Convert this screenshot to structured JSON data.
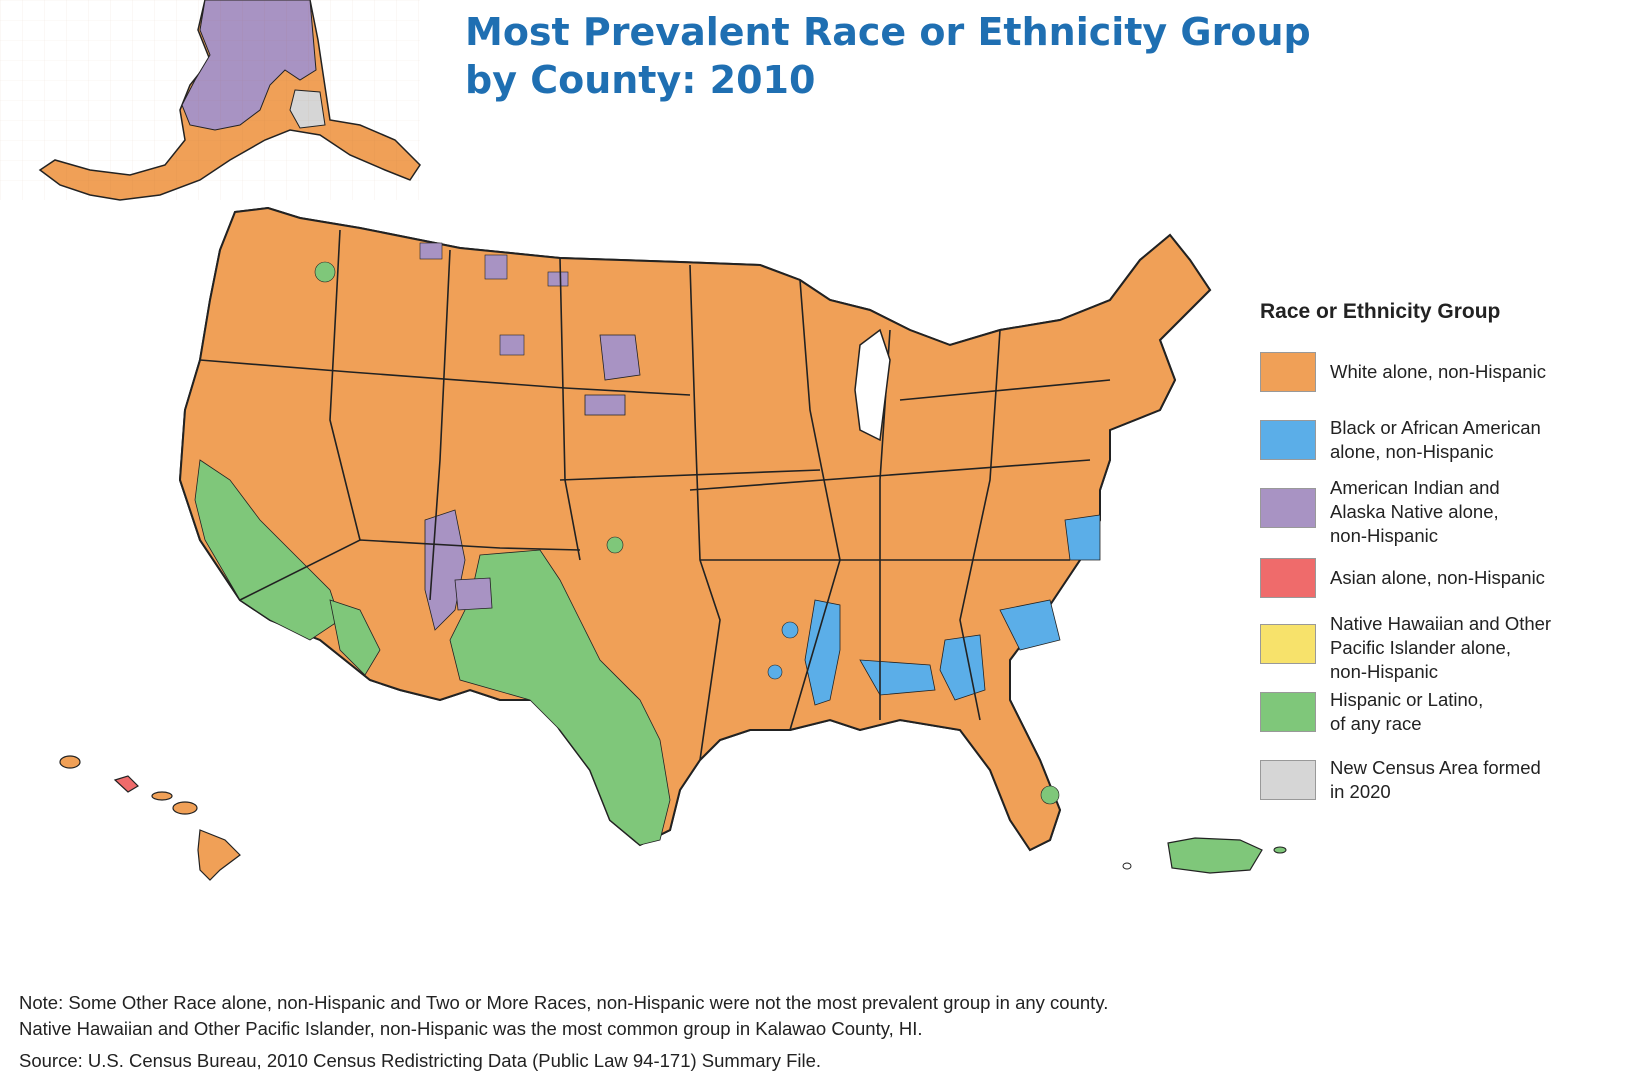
{
  "title": {
    "line1": "Most Prevalent Race or Ethnicity Group",
    "line2": "by County: 2010"
  },
  "legend": {
    "title": "Race or Ethnicity Group",
    "items": [
      {
        "label": "White alone, non-Hispanic",
        "color": "#f0a057"
      },
      {
        "label": "Black or African American\nalone, non-Hispanic",
        "color": "#5baee8"
      },
      {
        "label": "American Indian and\nAlaska Native alone,\nnon-Hispanic",
        "color": "#a893c3"
      },
      {
        "label": "Asian alone, non-Hispanic",
        "color": "#ef6b6b"
      },
      {
        "label": "Native Hawaiian and Other\nPacific Islander alone,\nnon-Hispanic",
        "color": "#f7e26b"
      },
      {
        "label": "Hispanic or Latino,\nof any race",
        "color": "#7fc77a"
      },
      {
        "label": "New Census Area formed\nin 2020",
        "color": "#d6d6d6"
      }
    ]
  },
  "map": {
    "outline_color": "#2a2a2a",
    "regions_icon": "us-county-map"
  },
  "footer": {
    "note1": "Note: Some Other Race alone, non-Hispanic and Two or More Races, non-Hispanic were not the most prevalent group in any county.",
    "note2": "Native Hawaiian and Other Pacific Islander, non-Hispanic was the most common group in Kalawao County, HI.",
    "source": "Source: U.S. Census Bureau, 2010 Census Redistricting Data (Public Law 94-171) Summary File."
  }
}
